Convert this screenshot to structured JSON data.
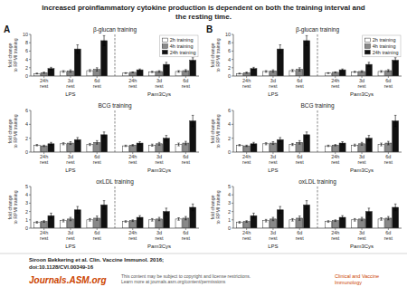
{
  "title": "Increased proinflammatory cytokine production is dependent on both the training interval and\nthe resting time.",
  "annotations": [
    "A",
    "B",
    "Siroon Bekkering et al. Clin. Vaccine Immunol. 2016;",
    "doi:10.1128/CVI.00349-16",
    "Journals.ASM.org",
    "This content may be subject to copyright and license restrictions.\nLearn more at journals.asm.org/content/permissions",
    "Clinical and Vaccine\nImmunology"
  ],
  "chart_data": [
    {
      "type": "bar",
      "title": "β-glucan training",
      "y_label": "fold change\nto RPMI training",
      "categories": [
        "24h\nrest",
        "3d\nrest",
        "6d\nrest",
        "24h\nrest",
        "3d\nrest",
        "6d\nrest"
      ],
      "annotations": [
        "LPS",
        "Pam3Cys"
      ],
      "series": [
        {
          "name": "2h training",
          "color": "#ffffff",
          "values": [
            0.6,
            1.1,
            1.3,
            0.7,
            1.0,
            1.1
          ],
          "errors": [
            0.1,
            0.2,
            0.25,
            0.1,
            0.15,
            0.2
          ]
        },
        {
          "name": "4h training",
          "color": "#888888",
          "values": [
            0.8,
            1.2,
            1.6,
            0.9,
            1.1,
            1.3
          ],
          "errors": [
            0.15,
            0.3,
            0.4,
            0.1,
            0.2,
            0.25
          ]
        },
        {
          "name": "24h training",
          "color": "#111111",
          "values": [
            1.8,
            6.5,
            8.5,
            1.5,
            2.8,
            3.8
          ],
          "errors": [
            0.3,
            1.0,
            1.2,
            0.2,
            0.5,
            0.6
          ]
        }
      ],
      "ylim": [
        0,
        10
      ],
      "yticks": [
        0,
        2,
        4,
        6,
        8,
        10
      ],
      "grid": false,
      "legend": "upper right"
    },
    {
      "type": "bar",
      "title": "β-glucan training",
      "y_label": "fold change\nto RPMI training",
      "categories": [
        "24h\nrest",
        "3d\nrest",
        "6d\nrest",
        "24h\nrest",
        "3d\nrest",
        "6d\nrest"
      ],
      "annotations": [
        "LPS",
        "Pam3Cys"
      ],
      "series": [
        {
          "name": "2h training",
          "color": "#ffffff",
          "values": [
            0.6,
            1.1,
            1.3,
            0.7,
            1.0,
            1.1
          ],
          "errors": [
            0.1,
            0.2,
            0.25,
            0.1,
            0.15,
            0.2
          ]
        },
        {
          "name": "4h training",
          "color": "#888888",
          "values": [
            0.8,
            1.2,
            1.6,
            0.9,
            1.1,
            1.3
          ],
          "errors": [
            0.15,
            0.3,
            0.4,
            0.1,
            0.2,
            0.25
          ]
        },
        {
          "name": "24h training",
          "color": "#111111",
          "values": [
            1.8,
            6.5,
            8.5,
            1.5,
            2.8,
            3.8
          ],
          "errors": [
            0.3,
            1.0,
            1.2,
            0.2,
            0.5,
            0.6
          ]
        }
      ],
      "ylim": [
        0,
        10
      ],
      "yticks": [
        0,
        2,
        4,
        6,
        8,
        10
      ],
      "grid": false,
      "legend": "upper right"
    },
    {
      "type": "bar",
      "title": "BCG training",
      "y_label": "fold change\nto RPMI training",
      "categories": [
        "24h\nrest",
        "3d\nrest",
        "6d\nrest",
        "24h\nrest",
        "3d\nrest",
        "6d\nrest"
      ],
      "annotations": [
        "LPS",
        "Pam3Cys"
      ],
      "series": [
        {
          "name": "2h training",
          "color": "#ffffff",
          "values": [
            1.0,
            1.2,
            1.1,
            0.9,
            1.0,
            1.1
          ],
          "errors": [
            0.1,
            0.15,
            0.15,
            0.1,
            0.15,
            0.2
          ]
        },
        {
          "name": "4h training",
          "color": "#888888",
          "values": [
            0.9,
            1.3,
            1.4,
            1.0,
            1.2,
            1.3
          ],
          "errors": [
            0.1,
            0.2,
            0.25,
            0.1,
            0.2,
            0.25
          ]
        },
        {
          "name": "24h training",
          "color": "#111111",
          "values": [
            1.2,
            1.8,
            2.5,
            1.3,
            2.0,
            4.5
          ],
          "errors": [
            0.2,
            0.3,
            0.4,
            0.2,
            0.4,
            0.8
          ]
        }
      ],
      "ylim": [
        0,
        6
      ],
      "yticks": [
        0,
        2,
        4,
        6
      ],
      "grid": false
    },
    {
      "type": "bar",
      "title": "BCG training",
      "y_label": "fold change\nto RPMI training",
      "categories": [
        "24h\nrest",
        "3d\nrest",
        "6d\nrest",
        "24h\nrest",
        "3d\nrest",
        "6d\nrest"
      ],
      "annotations": [
        "LPS",
        "Pam3Cys"
      ],
      "series": [
        {
          "name": "2h training",
          "color": "#ffffff",
          "values": [
            1.0,
            1.2,
            1.1,
            0.9,
            1.0,
            1.1
          ],
          "errors": [
            0.1,
            0.15,
            0.15,
            0.1,
            0.15,
            0.2
          ]
        },
        {
          "name": "4h training",
          "color": "#888888",
          "values": [
            0.9,
            1.3,
            1.4,
            1.0,
            1.2,
            1.3
          ],
          "errors": [
            0.1,
            0.2,
            0.25,
            0.1,
            0.2,
            0.25
          ]
        },
        {
          "name": "24h training",
          "color": "#111111",
          "values": [
            1.2,
            1.8,
            2.5,
            1.3,
            2.0,
            4.5
          ],
          "errors": [
            0.2,
            0.3,
            0.4,
            0.2,
            0.4,
            0.8
          ]
        }
      ],
      "ylim": [
        0,
        6
      ],
      "yticks": [
        0,
        2,
        4,
        6
      ],
      "grid": false
    },
    {
      "type": "bar",
      "title": "oxLDL training",
      "y_label": "fold change\nto RPMI training",
      "categories": [
        "24h\nrest",
        "3d\nrest",
        "6d\nrest",
        "24h\nrest",
        "3d\nrest",
        "6d\nrest"
      ],
      "annotations": [
        "LPS",
        "Pam3Cys"
      ],
      "series": [
        {
          "name": "2h training",
          "color": "#ffffff",
          "values": [
            0.7,
            0.9,
            1.0,
            0.8,
            1.0,
            1.1
          ],
          "errors": [
            0.1,
            0.15,
            0.15,
            0.1,
            0.15,
            0.15
          ]
        },
        {
          "name": "4h training",
          "color": "#888888",
          "values": [
            0.8,
            1.1,
            1.2,
            0.9,
            1.1,
            1.2
          ],
          "errors": [
            0.1,
            0.2,
            0.25,
            0.1,
            0.2,
            0.2
          ]
        },
        {
          "name": "24h training",
          "color": "#111111",
          "values": [
            1.5,
            2.2,
            2.8,
            1.3,
            2.0,
            2.5
          ],
          "errors": [
            0.3,
            0.4,
            0.5,
            0.2,
            0.4,
            0.4
          ]
        }
      ],
      "ylim": [
        0,
        5
      ],
      "yticks": [
        0,
        1,
        2,
        3,
        4,
        5
      ],
      "grid": false
    },
    {
      "type": "bar",
      "title": "oxLDL training",
      "y_label": "fold change\nto RPMI training",
      "categories": [
        "24h\nrest",
        "3d\nrest",
        "6d\nrest",
        "24h\nrest",
        "3d\nrest",
        "6d\nrest"
      ],
      "annotations": [
        "LPS",
        "Pam3Cys"
      ],
      "series": [
        {
          "name": "2h training",
          "color": "#ffffff",
          "values": [
            0.7,
            0.9,
            1.0,
            0.8,
            1.0,
            1.1
          ],
          "errors": [
            0.1,
            0.15,
            0.15,
            0.1,
            0.15,
            0.15
          ]
        },
        {
          "name": "4h training",
          "color": "#888888",
          "values": [
            0.8,
            1.1,
            1.2,
            0.9,
            1.1,
            1.2
          ],
          "errors": [
            0.1,
            0.2,
            0.25,
            0.1,
            0.2,
            0.2
          ]
        },
        {
          "name": "24h training",
          "color": "#111111",
          "values": [
            1.5,
            2.2,
            2.8,
            1.3,
            2.0,
            2.5
          ],
          "errors": [
            0.3,
            0.4,
            0.5,
            0.2,
            0.4,
            0.4
          ]
        }
      ],
      "ylim": [
        0,
        5
      ],
      "yticks": [
        0,
        1,
        2,
        3,
        4,
        5
      ],
      "grid": false
    }
  ]
}
